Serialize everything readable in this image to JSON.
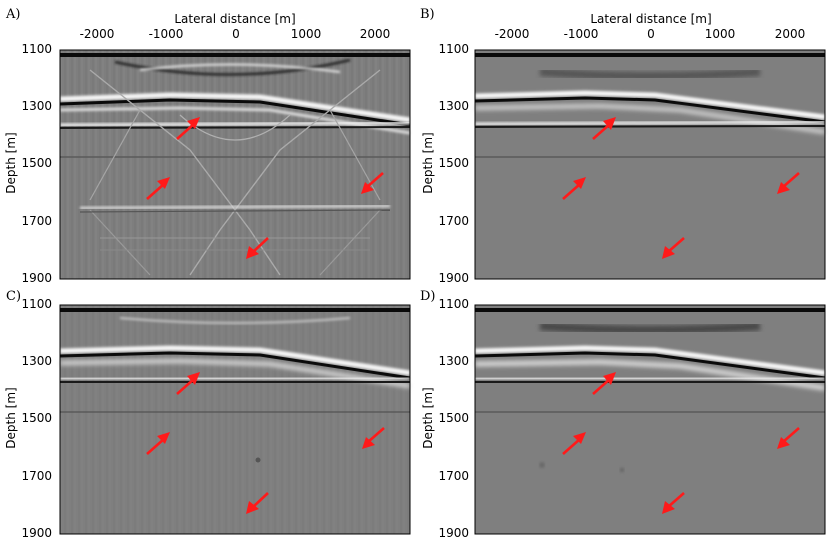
{
  "figure": {
    "top_axis_label": "Lateral distance [m]",
    "left_axis_label": "Depth [m]",
    "x_ticks": [
      "-2000",
      "-1000",
      "0",
      "1000",
      "2000"
    ],
    "y_ticks": [
      "1100",
      "1300",
      "1500",
      "1700",
      "1900"
    ],
    "arrow_color": "#ff1a1a",
    "background_gray": "#7f7f7f"
  },
  "panels": [
    {
      "label": "A)"
    },
    {
      "label": "B)"
    },
    {
      "label": "C)"
    },
    {
      "label": "D)"
    }
  ]
}
